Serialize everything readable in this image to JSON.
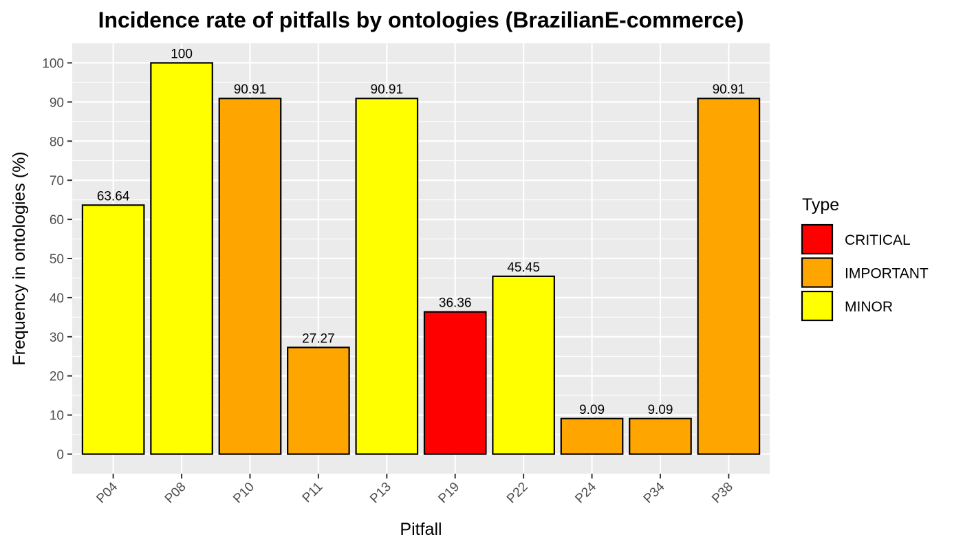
{
  "chart_data": {
    "type": "bar",
    "title": "Incidence rate of pitfalls by ontologies (BrazilianE-commerce)",
    "xlabel": "Pitfall",
    "ylabel": "Frequency in ontologies (%)",
    "ylim": [
      -5,
      105
    ],
    "yticks": [
      0,
      10,
      20,
      30,
      40,
      50,
      60,
      70,
      80,
      90,
      100
    ],
    "yticks_labels": [
      "0",
      "10",
      "20",
      "30",
      "40",
      "50",
      "60",
      "70",
      "80",
      "90",
      "100"
    ],
    "grid": true,
    "legend_position": "right",
    "categories": [
      "P04",
      "P08",
      "P10",
      "P11",
      "P13",
      "P19",
      "P22",
      "P24",
      "P34",
      "P38"
    ],
    "values": [
      63.64,
      100,
      90.91,
      27.27,
      90.91,
      36.36,
      45.45,
      9.09,
      9.09,
      90.91
    ],
    "value_labels": [
      "63.64",
      "100",
      "90.91",
      "27.27",
      "90.91",
      "36.36",
      "45.45",
      "9.09",
      "9.09",
      "90.91"
    ],
    "types": [
      "MINOR",
      "MINOR",
      "IMPORTANT",
      "IMPORTANT",
      "MINOR",
      "CRITICAL",
      "MINOR",
      "IMPORTANT",
      "IMPORTANT",
      "IMPORTANT"
    ],
    "legend": {
      "title": "Type",
      "entries": [
        {
          "name": "CRITICAL",
          "color": "#ff0000"
        },
        {
          "name": "IMPORTANT",
          "color": "#ffa500"
        },
        {
          "name": "MINOR",
          "color": "#ffff00"
        }
      ]
    },
    "colors": {
      "panel_background": "#ebebeb",
      "grid_line": "#ffffff",
      "bar_outline": "#000000"
    }
  }
}
